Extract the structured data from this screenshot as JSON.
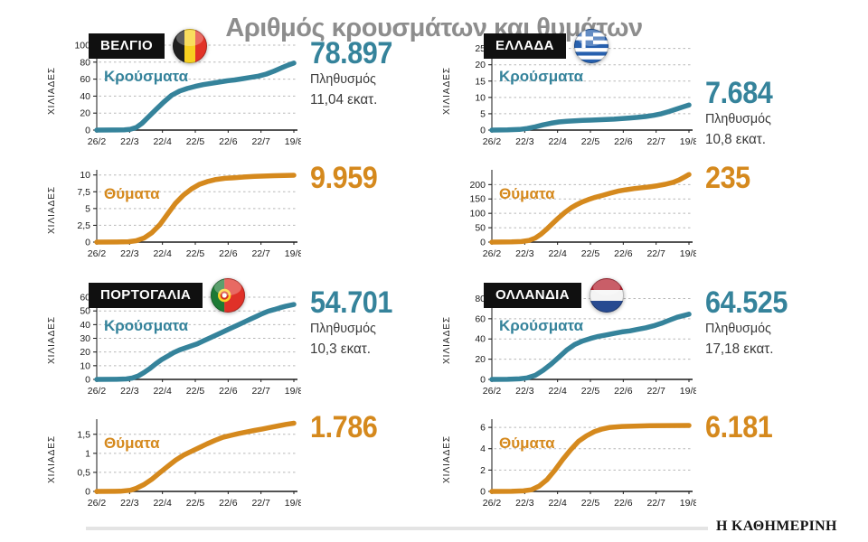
{
  "title": "Αριθμός κρουσμάτων και θυμάτων",
  "footer": {
    "brand": "Η ΚΑΘΗΜΕΡΙΝΗ"
  },
  "colors": {
    "cases": "#35839b",
    "deaths": "#d5891d",
    "title_gray": "#8d8d8d"
  },
  "panels": [
    {
      "country": "ΒΕΛΓΙΟ",
      "flag": "belgium",
      "population_label": "Πληθυσμός",
      "population": "11,04 εκατ."
    },
    {
      "country": "ΕΛΛΑΔΑ",
      "flag": "greece",
      "population_label": "Πληθυσμός",
      "population": "10,8 εκατ."
    },
    {
      "country": "ΠΟΡΤΟΓΑΛΙΑ",
      "flag": "portugal",
      "population_label": "Πληθυσμός",
      "population": "10,3 εκατ."
    },
    {
      "country": "ΟΛΛΑΝΔΙΑ",
      "flag": "netherlands",
      "population_label": "Πληθυσμός",
      "population": "17,18 εκατ."
    }
  ],
  "chart_data": [
    {
      "type": "line",
      "country": "ΒΕΛΓΙΟ",
      "metric": "Κρούσματα",
      "color": "#35839b",
      "ylabel": "ΧΙΛΙΑΔΕΣ",
      "final_label": "78.897",
      "x": [
        "26/2",
        "22/3",
        "22/4",
        "22/5",
        "22/6",
        "22/7",
        "19/8"
      ],
      "ytick_values": [
        0,
        20,
        40,
        60,
        80,
        100
      ],
      "ytick_labels": [
        "0",
        "20",
        "40",
        "60",
        "80",
        "100"
      ],
      "ylim": [
        0,
        100
      ],
      "grid": "dashed",
      "units": "thousands",
      "points": [
        [
          0,
          0
        ],
        [
          0.08,
          0.1
        ],
        [
          0.14,
          0.3
        ],
        [
          0.17,
          1
        ],
        [
          0.2,
          3
        ],
        [
          0.23,
          8
        ],
        [
          0.26,
          15
        ],
        [
          0.3,
          24
        ],
        [
          0.34,
          33
        ],
        [
          0.38,
          41
        ],
        [
          0.42,
          46
        ],
        [
          0.46,
          49
        ],
        [
          0.5,
          51.5
        ],
        [
          0.54,
          53.5
        ],
        [
          0.58,
          55
        ],
        [
          0.62,
          56.5
        ],
        [
          0.66,
          58
        ],
        [
          0.7,
          59
        ],
        [
          0.74,
          60.5
        ],
        [
          0.78,
          62
        ],
        [
          0.82,
          63.5
        ],
        [
          0.86,
          66
        ],
        [
          0.9,
          69.5
        ],
        [
          0.94,
          73.5
        ],
        [
          0.97,
          76.5
        ],
        [
          1,
          78.9
        ]
      ]
    },
    {
      "type": "line",
      "country": "ΒΕΛΓΙΟ",
      "metric": "Θύματα",
      "color": "#d5891d",
      "ylabel": "ΧΙΛΙΑΔΕΣ",
      "final_label": "9.959",
      "x": [
        "26/2",
        "22/3",
        "22/4",
        "22/5",
        "22/6",
        "22/7",
        "19/8"
      ],
      "ytick_values": [
        0,
        2.5,
        5,
        7.5,
        10
      ],
      "ytick_labels": [
        "0",
        "2,5",
        "5",
        "7,5",
        "10"
      ],
      "ylim": [
        0,
        10.5
      ],
      "grid": "dashed",
      "units": "thousands",
      "points": [
        [
          0,
          0
        ],
        [
          0.1,
          0.01
        ],
        [
          0.16,
          0.05
        ],
        [
          0.2,
          0.2
        ],
        [
          0.24,
          0.6
        ],
        [
          0.28,
          1.4
        ],
        [
          0.32,
          2.6
        ],
        [
          0.36,
          4.2
        ],
        [
          0.4,
          5.8
        ],
        [
          0.44,
          7.0
        ],
        [
          0.48,
          7.9
        ],
        [
          0.52,
          8.6
        ],
        [
          0.56,
          9.0
        ],
        [
          0.6,
          9.3
        ],
        [
          0.65,
          9.5
        ],
        [
          0.7,
          9.6
        ],
        [
          0.75,
          9.7
        ],
        [
          0.8,
          9.78
        ],
        [
          0.85,
          9.84
        ],
        [
          0.9,
          9.9
        ],
        [
          0.95,
          9.94
        ],
        [
          1,
          9.96
        ]
      ]
    },
    {
      "type": "line",
      "country": "ΕΛΛΑΔΑ",
      "metric": "Κρούσματα",
      "color": "#35839b",
      "ylabel": "ΧΙΛΙΑΔΕΣ",
      "final_label": "7.684",
      "x": [
        "26/2",
        "22/3",
        "22/4",
        "22/5",
        "22/6",
        "22/7",
        "19/8"
      ],
      "ytick_values": [
        0,
        5,
        10,
        15,
        20,
        25
      ],
      "ytick_labels": [
        "0",
        "5",
        "10",
        "15",
        "20",
        "25"
      ],
      "ylim": [
        0,
        26
      ],
      "grid": "dashed",
      "units": "thousands",
      "points": [
        [
          0,
          0
        ],
        [
          0.08,
          0.05
        ],
        [
          0.14,
          0.2
        ],
        [
          0.18,
          0.5
        ],
        [
          0.22,
          1.0
        ],
        [
          0.26,
          1.6
        ],
        [
          0.3,
          2.1
        ],
        [
          0.34,
          2.5
        ],
        [
          0.38,
          2.7
        ],
        [
          0.42,
          2.85
        ],
        [
          0.46,
          2.95
        ],
        [
          0.5,
          3.05
        ],
        [
          0.54,
          3.15
        ],
        [
          0.58,
          3.25
        ],
        [
          0.62,
          3.35
        ],
        [
          0.66,
          3.5
        ],
        [
          0.7,
          3.7
        ],
        [
          0.74,
          3.9
        ],
        [
          0.78,
          4.15
        ],
        [
          0.82,
          4.5
        ],
        [
          0.86,
          5.0
        ],
        [
          0.9,
          5.7
        ],
        [
          0.94,
          6.5
        ],
        [
          0.97,
          7.1
        ],
        [
          1,
          7.7
        ]
      ]
    },
    {
      "type": "line",
      "country": "ΕΛΛΑΔΑ",
      "metric": "Θύματα",
      "color": "#d5891d",
      "ylabel": "",
      "final_label": "235",
      "x": [
        "26/2",
        "22/3",
        "22/4",
        "22/5",
        "22/6",
        "22/7",
        "19/8"
      ],
      "ytick_values": [
        0,
        50,
        100,
        150,
        200
      ],
      "ytick_labels": [
        "0",
        "50",
        "100",
        "150",
        "200"
      ],
      "ylim": [
        0,
        245
      ],
      "grid": "dashed",
      "units": "absolute",
      "points": [
        [
          0,
          0
        ],
        [
          0.1,
          0.5
        ],
        [
          0.15,
          2
        ],
        [
          0.19,
          6
        ],
        [
          0.22,
          14
        ],
        [
          0.25,
          28
        ],
        [
          0.28,
          46
        ],
        [
          0.31,
          66
        ],
        [
          0.34,
          85
        ],
        [
          0.37,
          103
        ],
        [
          0.4,
          118
        ],
        [
          0.43,
          130
        ],
        [
          0.46,
          140
        ],
        [
          0.49,
          148
        ],
        [
          0.52,
          155
        ],
        [
          0.56,
          162
        ],
        [
          0.6,
          170
        ],
        [
          0.64,
          177
        ],
        [
          0.68,
          182
        ],
        [
          0.72,
          186
        ],
        [
          0.76,
          189
        ],
        [
          0.8,
          192
        ],
        [
          0.84,
          196
        ],
        [
          0.88,
          201
        ],
        [
          0.92,
          208
        ],
        [
          0.95,
          216
        ],
        [
          0.98,
          227
        ],
        [
          1,
          235
        ]
      ]
    },
    {
      "type": "line",
      "country": "ΠΟΡΤΟΓΑΛΙΑ",
      "metric": "Κρούσματα",
      "color": "#35839b",
      "ylabel": "ΧΙΛΙΑΔΕΣ",
      "final_label": "54.701",
      "x": [
        "26/2",
        "22/3",
        "22/4",
        "22/5",
        "22/6",
        "22/7",
        "19/8"
      ],
      "ytick_values": [
        0,
        10,
        20,
        30,
        40,
        50,
        60
      ],
      "ytick_labels": [
        "0",
        "10",
        "20",
        "30",
        "40",
        "50",
        "60"
      ],
      "ylim": [
        0,
        62
      ],
      "grid": "dashed",
      "units": "thousands",
      "points": [
        [
          0,
          0
        ],
        [
          0.1,
          0.05
        ],
        [
          0.15,
          0.3
        ],
        [
          0.18,
          1
        ],
        [
          0.21,
          2.5
        ],
        [
          0.24,
          5
        ],
        [
          0.27,
          8
        ],
        [
          0.3,
          11.5
        ],
        [
          0.33,
          14.5
        ],
        [
          0.36,
          17
        ],
        [
          0.39,
          19.5
        ],
        [
          0.42,
          21.5
        ],
        [
          0.45,
          23
        ],
        [
          0.48,
          24.5
        ],
        [
          0.51,
          26
        ],
        [
          0.54,
          28
        ],
        [
          0.57,
          30
        ],
        [
          0.6,
          32
        ],
        [
          0.63,
          34
        ],
        [
          0.66,
          36
        ],
        [
          0.69,
          38
        ],
        [
          0.72,
          40
        ],
        [
          0.75,
          42
        ],
        [
          0.78,
          44
        ],
        [
          0.81,
          46
        ],
        [
          0.84,
          48
        ],
        [
          0.87,
          49.8
        ],
        [
          0.9,
          51
        ],
        [
          0.93,
          52.3
        ],
        [
          0.96,
          53.5
        ],
        [
          1,
          54.7
        ]
      ]
    },
    {
      "type": "line",
      "country": "ΠΟΡΤΟΓΑΛΙΑ",
      "metric": "Θύματα",
      "color": "#d5891d",
      "ylabel": "ΧΙΛΙΑΔΕΣ",
      "final_label": "1.786",
      "x": [
        "26/2",
        "22/3",
        "22/4",
        "22/5",
        "22/6",
        "22/7",
        "19/8"
      ],
      "ytick_values": [
        0,
        0.5,
        1,
        1.5
      ],
      "ytick_labels": [
        "0",
        "0,5",
        "1",
        "1,5"
      ],
      "ylim": [
        0,
        1.85
      ],
      "grid": "dashed",
      "units": "thousands",
      "points": [
        [
          0,
          0
        ],
        [
          0.12,
          0.005
        ],
        [
          0.17,
          0.03
        ],
        [
          0.2,
          0.08
        ],
        [
          0.24,
          0.18
        ],
        [
          0.28,
          0.32
        ],
        [
          0.32,
          0.49
        ],
        [
          0.36,
          0.66
        ],
        [
          0.4,
          0.82
        ],
        [
          0.44,
          0.95
        ],
        [
          0.48,
          1.05
        ],
        [
          0.52,
          1.15
        ],
        [
          0.56,
          1.25
        ],
        [
          0.6,
          1.34
        ],
        [
          0.64,
          1.42
        ],
        [
          0.68,
          1.47
        ],
        [
          0.72,
          1.52
        ],
        [
          0.76,
          1.56
        ],
        [
          0.8,
          1.6
        ],
        [
          0.84,
          1.64
        ],
        [
          0.88,
          1.68
        ],
        [
          0.92,
          1.72
        ],
        [
          0.96,
          1.76
        ],
        [
          1,
          1.79
        ]
      ]
    },
    {
      "type": "line",
      "country": "ΟΛΛΑΝΔΙΑ",
      "metric": "Κρούσματα",
      "color": "#35839b",
      "ylabel": "ΧΙΛΙΑΔΕΣ",
      "final_label": "64.525",
      "x": [
        "26/2",
        "22/3",
        "22/4",
        "22/5",
        "22/6",
        "22/7",
        "19/8"
      ],
      "ytick_values": [
        0,
        20,
        40,
        60,
        80
      ],
      "ytick_labels": [
        "0",
        "20",
        "40",
        "60",
        "80"
      ],
      "ylim": [
        0,
        84
      ],
      "grid": "dashed",
      "units": "thousands",
      "points": [
        [
          0,
          0
        ],
        [
          0.08,
          0.1
        ],
        [
          0.14,
          0.5
        ],
        [
          0.18,
          1.5
        ],
        [
          0.22,
          4
        ],
        [
          0.26,
          9
        ],
        [
          0.3,
          15
        ],
        [
          0.34,
          22
        ],
        [
          0.38,
          29
        ],
        [
          0.42,
          34.5
        ],
        [
          0.46,
          38
        ],
        [
          0.5,
          40.5
        ],
        [
          0.54,
          42.5
        ],
        [
          0.58,
          44
        ],
        [
          0.62,
          45.5
        ],
        [
          0.66,
          47
        ],
        [
          0.7,
          48
        ],
        [
          0.74,
          49.5
        ],
        [
          0.78,
          51
        ],
        [
          0.82,
          53
        ],
        [
          0.86,
          55.5
        ],
        [
          0.9,
          58.5
        ],
        [
          0.94,
          61.5
        ],
        [
          1,
          64.5
        ]
      ]
    },
    {
      "type": "line",
      "country": "ΟΛΛΑΝΔΙΑ",
      "metric": "Θύματα",
      "color": "#d5891d",
      "ylabel": "ΧΙΛΙΑΔΕΣ",
      "final_label": "6.181",
      "x": [
        "26/2",
        "22/3",
        "22/4",
        "22/5",
        "22/6",
        "22/7",
        "19/8"
      ],
      "ytick_values": [
        0,
        2,
        4,
        6
      ],
      "ytick_labels": [
        "0",
        "2",
        "4",
        "6"
      ],
      "ylim": [
        0,
        6.6
      ],
      "grid": "dashed",
      "units": "thousands",
      "points": [
        [
          0,
          0
        ],
        [
          0.1,
          0.01
        ],
        [
          0.16,
          0.05
        ],
        [
          0.2,
          0.15
        ],
        [
          0.24,
          0.5
        ],
        [
          0.28,
          1.1
        ],
        [
          0.32,
          2.0
        ],
        [
          0.36,
          3.0
        ],
        [
          0.4,
          3.9
        ],
        [
          0.44,
          4.7
        ],
        [
          0.48,
          5.2
        ],
        [
          0.52,
          5.6
        ],
        [
          0.56,
          5.85
        ],
        [
          0.6,
          6.0
        ],
        [
          0.66,
          6.08
        ],
        [
          0.72,
          6.12
        ],
        [
          0.8,
          6.15
        ],
        [
          0.9,
          6.17
        ],
        [
          1,
          6.18
        ]
      ]
    }
  ]
}
